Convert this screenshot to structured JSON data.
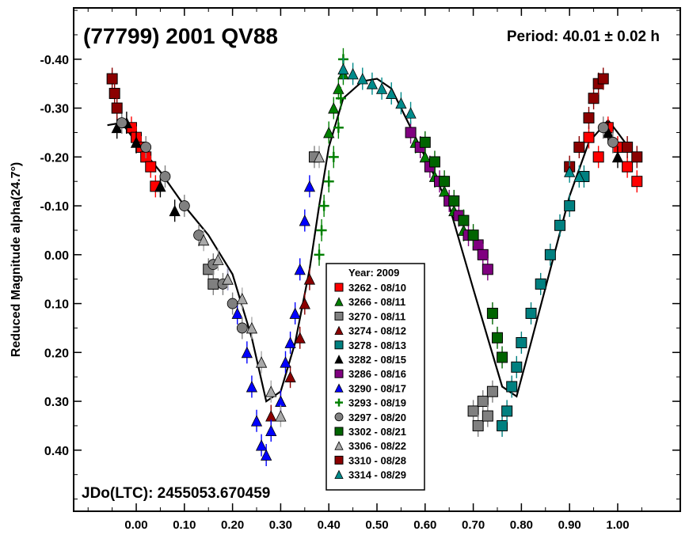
{
  "chart_data": {
    "type": "scatter",
    "title": "(77799) 2001 QV88",
    "period_label": "Period: 40.01 ± 0.02 h",
    "epoch_label": "JDo(LTC): 2455053.670459",
    "ylabel": "Reduced Magnitude alpha(24.7°)",
    "xlabel": "",
    "xlim": [
      -0.13,
      1.13
    ],
    "ylim": [
      -0.505,
      0.525
    ],
    "y_inverted": true,
    "grid": false,
    "legend_position": "center",
    "legend_title": "Year: 2009",
    "x_ticks": [
      {
        "v": 0.0,
        "label": "0.00"
      },
      {
        "v": 0.1,
        "label": "0.10"
      },
      {
        "v": 0.2,
        "label": "0.20"
      },
      {
        "v": 0.3,
        "label": "0.30"
      },
      {
        "v": 0.4,
        "label": "0.40"
      },
      {
        "v": 0.5,
        "label": "0.50"
      },
      {
        "v": 0.6,
        "label": "0.60"
      },
      {
        "v": 0.7,
        "label": "0.70"
      },
      {
        "v": 0.8,
        "label": "0.80"
      },
      {
        "v": 0.9,
        "label": "0.90"
      },
      {
        "v": 1.0,
        "label": "1.00"
      }
    ],
    "y_ticks": [
      {
        "v": -0.4,
        "label": "-0.40"
      },
      {
        "v": -0.3,
        "label": "-0.30"
      },
      {
        "v": -0.2,
        "label": "-0.20"
      },
      {
        "v": -0.1,
        "label": "-0.10"
      },
      {
        "v": 0.0,
        "label": "0.00"
      },
      {
        "v": 0.1,
        "label": "0.10"
      },
      {
        "v": 0.2,
        "label": "0.20"
      },
      {
        "v": 0.3,
        "label": "0.30"
      },
      {
        "v": 0.4,
        "label": "0.40"
      }
    ],
    "fit_curve": [
      [
        -0.06,
        -0.265
      ],
      [
        -0.03,
        -0.27
      ],
      [
        0.0,
        -0.23
      ],
      [
        0.05,
        -0.17
      ],
      [
        0.1,
        -0.1
      ],
      [
        0.15,
        -0.04
      ],
      [
        0.2,
        0.04
      ],
      [
        0.24,
        0.17
      ],
      [
        0.27,
        0.3
      ],
      [
        0.3,
        0.28
      ],
      [
        0.33,
        0.18
      ],
      [
        0.36,
        0.03
      ],
      [
        0.38,
        -0.1
      ],
      [
        0.4,
        -0.22
      ],
      [
        0.43,
        -0.32
      ],
      [
        0.47,
        -0.355
      ],
      [
        0.5,
        -0.36
      ],
      [
        0.53,
        -0.34
      ],
      [
        0.6,
        -0.2
      ],
      [
        0.65,
        -0.1
      ],
      [
        0.7,
        0.07
      ],
      [
        0.73,
        0.17
      ],
      [
        0.76,
        0.27
      ],
      [
        0.79,
        0.29
      ],
      [
        0.82,
        0.18
      ],
      [
        0.86,
        0.03
      ],
      [
        0.9,
        -0.12
      ],
      [
        0.94,
        -0.23
      ],
      [
        0.98,
        -0.275
      ],
      [
        1.0,
        -0.25
      ],
      [
        1.03,
        -0.21
      ]
    ],
    "series": [
      {
        "name": "3262 - 08/10",
        "color": "#ff0000",
        "marker": "square",
        "points": [
          [
            -0.01,
            -0.26
          ],
          [
            0.0,
            -0.24
          ],
          [
            0.01,
            -0.22
          ],
          [
            0.02,
            -0.2
          ],
          [
            0.03,
            -0.18
          ],
          [
            0.04,
            -0.14
          ],
          [
            0.94,
            -0.24
          ],
          [
            0.96,
            -0.2
          ],
          [
            0.98,
            -0.26
          ],
          [
            1.0,
            -0.22
          ],
          [
            1.02,
            -0.18
          ],
          [
            1.04,
            -0.15
          ]
        ]
      },
      {
        "name": "3266 - 08/11",
        "color": "#008000",
        "marker": "triangle",
        "points": [
          [
            0.4,
            -0.25
          ],
          [
            0.41,
            -0.3
          ],
          [
            0.42,
            -0.34
          ],
          [
            0.43,
            -0.37
          ],
          [
            0.58,
            -0.23
          ],
          [
            0.6,
            -0.2
          ],
          [
            0.62,
            -0.16
          ],
          [
            0.64,
            -0.13
          ],
          [
            0.66,
            -0.09
          ],
          [
            0.68,
            -0.05
          ]
        ]
      },
      {
        "name": "3270 - 08/11",
        "color": "#808080",
        "marker": "square",
        "points": [
          [
            0.7,
            0.32
          ],
          [
            0.71,
            0.35
          ],
          [
            0.72,
            0.3
          ],
          [
            0.73,
            0.33
          ],
          [
            0.74,
            0.28
          ],
          [
            0.37,
            -0.2
          ],
          [
            0.15,
            0.03
          ],
          [
            0.16,
            0.06
          ]
        ]
      },
      {
        "name": "3274 - 08/12",
        "color": "#8b0000",
        "marker": "triangle",
        "points": [
          [
            0.3,
            0.3
          ],
          [
            0.32,
            0.25
          ],
          [
            0.34,
            0.17
          ],
          [
            0.35,
            0.1
          ],
          [
            0.36,
            0.05
          ],
          [
            0.28,
            0.33
          ]
        ]
      },
      {
        "name": "3278 - 08/13",
        "color": "#008080",
        "marker": "square",
        "points": [
          [
            0.76,
            0.35
          ],
          [
            0.77,
            0.32
          ],
          [
            0.78,
            0.27
          ],
          [
            0.79,
            0.23
          ],
          [
            0.8,
            0.18
          ],
          [
            0.82,
            0.12
          ],
          [
            0.84,
            0.06
          ],
          [
            0.86,
            0.0
          ],
          [
            0.88,
            -0.06
          ],
          [
            0.9,
            -0.1
          ],
          [
            0.93,
            -0.16
          ]
        ]
      },
      {
        "name": "3282 - 08/15",
        "color": "#000000",
        "marker": "triangle",
        "points": [
          [
            -0.04,
            -0.26
          ],
          [
            -0.02,
            -0.27
          ],
          [
            0.0,
            -0.23
          ],
          [
            0.05,
            -0.14
          ],
          [
            0.08,
            -0.09
          ],
          [
            0.98,
            -0.25
          ],
          [
            1.0,
            -0.2
          ]
        ]
      },
      {
        "name": "3286 - 08/16",
        "color": "#800080",
        "marker": "square",
        "points": [
          [
            0.57,
            -0.25
          ],
          [
            0.59,
            -0.22
          ],
          [
            0.61,
            -0.18
          ],
          [
            0.63,
            -0.15
          ],
          [
            0.65,
            -0.11
          ],
          [
            0.67,
            -0.08
          ],
          [
            0.69,
            -0.04
          ],
          [
            0.71,
            -0.02
          ],
          [
            0.72,
            0.0
          ],
          [
            0.73,
            0.03
          ]
        ]
      },
      {
        "name": "3290 - 08/17",
        "color": "#0000ff",
        "marker": "triangle",
        "points": [
          [
            0.19,
            0.05
          ],
          [
            0.21,
            0.12
          ],
          [
            0.23,
            0.2
          ],
          [
            0.24,
            0.27
          ],
          [
            0.25,
            0.34
          ],
          [
            0.26,
            0.39
          ],
          [
            0.27,
            0.41
          ],
          [
            0.28,
            0.36
          ],
          [
            0.3,
            0.3
          ],
          [
            0.31,
            0.22
          ],
          [
            0.32,
            0.18
          ],
          [
            0.33,
            0.12
          ],
          [
            0.34,
            0.03
          ],
          [
            0.35,
            -0.07
          ],
          [
            0.36,
            -0.14
          ]
        ]
      },
      {
        "name": "3293 - 08/19",
        "color": "#008000",
        "marker": "plus",
        "points": [
          [
            0.38,
            0.0
          ],
          [
            0.385,
            -0.05
          ],
          [
            0.39,
            -0.1
          ],
          [
            0.4,
            -0.15
          ],
          [
            0.41,
            -0.2
          ],
          [
            0.42,
            -0.26
          ],
          [
            0.425,
            -0.32
          ],
          [
            0.43,
            -0.4
          ]
        ]
      },
      {
        "name": "3297 - 08/20",
        "color": "#808080",
        "marker": "circle",
        "points": [
          [
            -0.03,
            -0.27
          ],
          [
            0.02,
            -0.22
          ],
          [
            0.06,
            -0.16
          ],
          [
            0.1,
            -0.1
          ],
          [
            0.13,
            -0.04
          ],
          [
            0.16,
            0.02
          ],
          [
            0.18,
            0.06
          ],
          [
            0.2,
            0.1
          ],
          [
            0.22,
            0.15
          ],
          [
            0.97,
            -0.26
          ],
          [
            0.99,
            -0.23
          ]
        ]
      },
      {
        "name": "3302 - 08/21",
        "color": "#006400",
        "marker": "square",
        "points": [
          [
            0.6,
            -0.23
          ],
          [
            0.62,
            -0.19
          ],
          [
            0.64,
            -0.15
          ],
          [
            0.66,
            -0.11
          ],
          [
            0.68,
            -0.07
          ],
          [
            0.7,
            -0.04
          ],
          [
            0.74,
            0.12
          ],
          [
            0.75,
            0.17
          ],
          [
            0.76,
            0.21
          ]
        ]
      },
      {
        "name": "3306 - 08/22",
        "color": "#a9a9a9",
        "marker": "triangle",
        "points": [
          [
            0.14,
            -0.03
          ],
          [
            0.17,
            0.01
          ],
          [
            0.19,
            0.05
          ],
          [
            0.22,
            0.09
          ],
          [
            0.24,
            0.15
          ],
          [
            0.26,
            0.22
          ],
          [
            0.28,
            0.28
          ],
          [
            0.3,
            0.33
          ],
          [
            0.38,
            -0.2
          ]
        ]
      },
      {
        "name": "3310 - 08/28",
        "color": "#8b0000",
        "marker": "square",
        "points": [
          [
            -0.05,
            -0.36
          ],
          [
            -0.045,
            -0.33
          ],
          [
            -0.04,
            -0.3
          ],
          [
            0.9,
            -0.18
          ],
          [
            0.92,
            -0.22
          ],
          [
            0.94,
            -0.28
          ],
          [
            0.95,
            -0.32
          ],
          [
            0.96,
            -0.35
          ],
          [
            0.97,
            -0.36
          ],
          [
            1.02,
            -0.22
          ],
          [
            1.04,
            -0.2
          ]
        ]
      },
      {
        "name": "3314 - 08/29",
        "color": "#008b8b",
        "marker": "triangle",
        "points": [
          [
            0.43,
            -0.38
          ],
          [
            0.45,
            -0.37
          ],
          [
            0.47,
            -0.36
          ],
          [
            0.49,
            -0.35
          ],
          [
            0.51,
            -0.34
          ],
          [
            0.53,
            -0.33
          ],
          [
            0.55,
            -0.31
          ],
          [
            0.57,
            -0.29
          ],
          [
            0.9,
            -0.17
          ],
          [
            0.92,
            -0.16
          ]
        ]
      }
    ]
  }
}
